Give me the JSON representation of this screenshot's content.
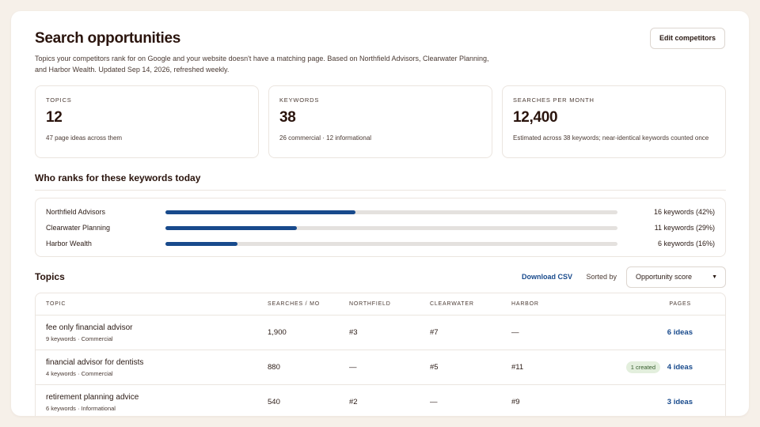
{
  "header": {
    "title": "Search opportunities",
    "subtitle": "Topics your competitors rank for on Google and your website doesn't have a matching page. Based on Northfield Advisors, Clearwater Planning, and Harbor Wealth. Updated Sep 14, 2026, refreshed weekly.",
    "edit_button": "Edit competitors"
  },
  "stats": [
    {
      "label": "TOPICS",
      "value": "12",
      "desc": "47 page ideas across them"
    },
    {
      "label": "KEYWORDS",
      "value": "38",
      "desc": "26 commercial · 12 informational"
    },
    {
      "label": "SEARCHES PER MONTH",
      "value": "12,400",
      "desc": "Estimated across 38 keywords; near-identical keywords counted once"
    }
  ],
  "who_ranks": {
    "title": "Who ranks for these keywords today",
    "rows": [
      {
        "name": "Northfield Advisors",
        "stat": "16 keywords (42%)",
        "share": 0.42
      },
      {
        "name": "Clearwater Planning",
        "stat": "11 keywords (29%)",
        "share": 0.29
      },
      {
        "name": "Harbor Wealth",
        "stat": "6 keywords (16%)",
        "share": 0.16
      }
    ]
  },
  "topics": {
    "title": "Topics",
    "download": "Download CSV",
    "sorted_label": "Sorted by",
    "sort_value": "Opportunity score",
    "columns": [
      "TOPIC",
      "SEARCHES / MO",
      "NORTHFIELD",
      "CLEARWATER",
      "HARBOR",
      "PAGES"
    ],
    "rows": [
      {
        "name": "fee only financial advisor",
        "meta": "9 keywords · Commercial",
        "searches": "1,900",
        "northfield": "#3",
        "clearwater": "#7",
        "harbor": "—",
        "badge": "",
        "pages": "6 ideas"
      },
      {
        "name": "financial advisor for dentists",
        "meta": "4 keywords · Commercial",
        "searches": "880",
        "northfield": "—",
        "clearwater": "#5",
        "harbor": "#11",
        "badge": "1 created",
        "pages": "4 ideas"
      },
      {
        "name": "retirement planning advice",
        "meta": "6 keywords · Informational",
        "searches": "540",
        "northfield": "#2",
        "clearwater": "—",
        "harbor": "#9",
        "badge": "",
        "pages": "3 ideas"
      }
    ]
  },
  "colors": {
    "accent": "#184a8c",
    "background": "#f6f0e9",
    "badge_bg": "#e3efdd"
  },
  "icons": {
    "sort_select": "chevron-down-icon"
  }
}
